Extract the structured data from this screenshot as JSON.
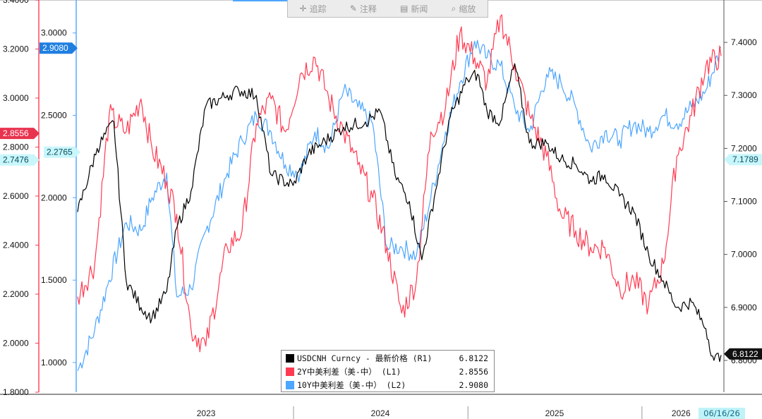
{
  "toolbar": {
    "items": [
      {
        "icon": "crosshair-icon",
        "label": "追踪"
      },
      {
        "icon": "pencil-icon",
        "label": "注释"
      },
      {
        "icon": "news-icon",
        "label": "新闻"
      },
      {
        "icon": "magnifier-icon",
        "label": "缩放"
      }
    ]
  },
  "date_box": "06/16/26",
  "colors": {
    "usdcnh": "#000000",
    "y2": "#ff3b52",
    "y10": "#4da6ff",
    "axis_far_left": "#111111",
    "axis_l1": "#ff3b52",
    "axis_l2": "#4da6ff"
  },
  "chart_data": {
    "type": "line",
    "x_range": [
      "2022-10-05",
      "2026-06-16"
    ],
    "x_ticks": [
      "2023",
      "2024",
      "2025",
      "2026"
    ],
    "axes": {
      "far_left": {
        "ticks": [
          "3.4000",
          "3.2000",
          "3.0000",
          "2.8000",
          "2.6000",
          "2.4000",
          "2.2000",
          "2.0000",
          "1.8000"
        ],
        "range": [
          1.8,
          3.4
        ]
      },
      "L1": {
        "ticks": [
          "3.0000",
          "2.5000",
          "2.0000",
          "1.5000",
          "1.0000"
        ],
        "range": [
          0.82,
          3.2
        ]
      },
      "L2": {
        "ticks": [
          "2.5000",
          "2.0000",
          "1.5000",
          "1.0000"
        ],
        "range": [
          0.82,
          3.2
        ]
      },
      "R1": {
        "ticks": [
          "7.4000",
          "7.3000",
          "7.2000",
          "7.1000",
          "7.0000",
          "6.9000",
          "6.8000"
        ],
        "range": [
          6.74,
          7.48
        ]
      }
    },
    "markers": {
      "far_left_red": "2.8556",
      "far_left_cyan": "2.7476",
      "l2_blue": "2.9080",
      "l1_cyan": "2.2765",
      "r1_cyan": "7.1789",
      "r1_black": "6.8122"
    },
    "legend": [
      {
        "name": "USDCNH Curncy - 最新价格 (R1)",
        "value": "6.8122"
      },
      {
        "name": "2Y中美利差（美-中） (L1)",
        "value": "2.8556"
      },
      {
        "name": "10Y中美利差（美-中） (L2)",
        "value": "2.9080"
      }
    ],
    "series": [
      {
        "name": "USDCNH Curncy - 最新价格 (R1)",
        "axis": "R1",
        "x": [
          "2022-10-05",
          "2022-11-15",
          "2022-12-20",
          "2023-01-15",
          "2023-02-15",
          "2023-03-10",
          "2023-04-10",
          "2023-05-01",
          "2023-05-31",
          "2023-07-01",
          "2023-08-15",
          "2023-09-08",
          "2023-10-15",
          "2023-11-15",
          "2023-12-31",
          "2024-02-01",
          "2024-03-01",
          "2024-04-15",
          "2024-05-31",
          "2024-07-01",
          "2024-08-01",
          "2024-08-31",
          "2024-09-26",
          "2024-10-25",
          "2024-11-25",
          "2024-12-31",
          "2025-01-21",
          "2025-02-10",
          "2025-03-10",
          "2025-04-09",
          "2025-05-10",
          "2025-06-15",
          "2025-07-15",
          "2025-08-15",
          "2025-09-15",
          "2025-10-15",
          "2025-11-15",
          "2025-12-15",
          "2026-01-15",
          "2026-02-15",
          "2026-03-15",
          "2026-04-15",
          "2026-05-15",
          "2026-06-01",
          "2026-06-16"
        ],
        "values": [
          7.08,
          7.2,
          7.25,
          6.95,
          6.9,
          6.88,
          6.93,
          7.05,
          7.12,
          7.28,
          7.3,
          7.31,
          7.3,
          7.15,
          7.13,
          7.19,
          7.21,
          7.24,
          7.25,
          7.27,
          7.15,
          7.1,
          6.99,
          7.12,
          7.26,
          7.33,
          7.34,
          7.27,
          7.25,
          7.36,
          7.21,
          7.21,
          7.18,
          7.17,
          7.14,
          7.15,
          7.11,
          7.08,
          7.0,
          6.95,
          6.9,
          6.91,
          6.86,
          6.8,
          6.81
        ]
      },
      {
        "name": "2Y中美利差（美-中） (L1)",
        "axis": "L1",
        "x": [
          "2022-10-05",
          "2022-11-10",
          "2022-12-10",
          "2023-01-15",
          "2023-02-15",
          "2023-03-10",
          "2023-04-10",
          "2023-05-01",
          "2023-05-31",
          "2023-07-01",
          "2023-08-15",
          "2023-09-15",
          "2023-10-15",
          "2023-11-15",
          "2023-12-15",
          "2024-01-15",
          "2024-02-15",
          "2024-03-15",
          "2024-04-15",
          "2024-05-15",
          "2024-06-15",
          "2024-07-15",
          "2024-08-15",
          "2024-09-15",
          "2024-10-15",
          "2024-11-15",
          "2024-12-15",
          "2025-01-15",
          "2025-02-10",
          "2025-03-10",
          "2025-04-09",
          "2025-05-10",
          "2025-06-15",
          "2025-07-15",
          "2025-08-15",
          "2025-09-15",
          "2025-10-15",
          "2025-11-15",
          "2025-12-15",
          "2026-01-15",
          "2026-02-15",
          "2026-03-15",
          "2026-04-15",
          "2026-05-15",
          "2026-06-16"
        ],
        "values": [
          1.4,
          1.6,
          2.5,
          2.4,
          2.6,
          2.3,
          2.1,
          1.9,
          1.2,
          1.1,
          1.7,
          1.8,
          2.45,
          2.6,
          2.4,
          2.75,
          2.85,
          2.6,
          2.4,
          2.2,
          2.0,
          1.7,
          1.3,
          1.5,
          2.4,
          2.55,
          3.0,
          2.85,
          2.7,
          3.1,
          2.8,
          2.5,
          2.25,
          1.9,
          1.8,
          1.7,
          1.7,
          1.45,
          1.5,
          1.35,
          1.6,
          2.25,
          2.5,
          2.8,
          2.86
        ]
      },
      {
        "name": "10Y中美利差（美-中） (L2)",
        "axis": "L2",
        "x": [
          "2022-10-05",
          "2022-11-10",
          "2022-12-10",
          "2023-01-15",
          "2023-02-15",
          "2023-03-10",
          "2023-04-10",
          "2023-05-01",
          "2023-05-31",
          "2023-07-01",
          "2023-08-15",
          "2023-09-15",
          "2023-10-15",
          "2023-11-15",
          "2023-12-15",
          "2024-01-15",
          "2024-02-15",
          "2024-03-15",
          "2024-04-15",
          "2024-05-15",
          "2024-06-15",
          "2024-07-15",
          "2024-08-15",
          "2024-09-15",
          "2024-10-15",
          "2024-11-15",
          "2024-12-15",
          "2025-01-15",
          "2025-02-10",
          "2025-03-10",
          "2025-04-09",
          "2025-05-10",
          "2025-06-15",
          "2025-07-15",
          "2025-08-15",
          "2025-09-15",
          "2025-10-15",
          "2025-11-15",
          "2025-12-15",
          "2026-01-15",
          "2026-02-15",
          "2026-03-15",
          "2026-04-15",
          "2026-05-15",
          "2026-06-16"
        ],
        "values": [
          0.95,
          1.2,
          1.5,
          1.85,
          1.8,
          2.0,
          2.15,
          1.4,
          1.45,
          1.8,
          2.15,
          2.35,
          2.5,
          2.4,
          2.2,
          2.15,
          2.4,
          2.3,
          2.65,
          2.55,
          2.45,
          1.7,
          1.7,
          1.65,
          2.0,
          2.4,
          2.7,
          2.95,
          2.85,
          2.8,
          2.55,
          2.4,
          2.75,
          2.7,
          2.55,
          2.3,
          2.4,
          2.35,
          2.45,
          2.4,
          2.5,
          2.45,
          2.55,
          2.65,
          2.91
        ]
      }
    ]
  }
}
